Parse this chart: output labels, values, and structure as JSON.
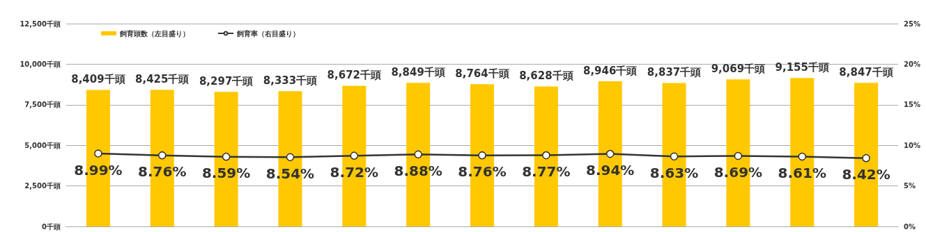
{
  "chart_data": {
    "type": "bar",
    "categories": [
      null,
      null,
      null,
      null,
      null,
      null,
      null,
      null,
      null,
      null,
      null,
      null,
      null
    ],
    "series": [
      {
        "name": "飼育頭数（左目盛り）",
        "color": "#ffc800",
        "values": [
          8409,
          8425,
          8297,
          8333,
          8672,
          8849,
          8764,
          8628,
          8946,
          8837,
          9069,
          9155,
          8847
        ],
        "value_labels": [
          "8,409千頭",
          "8,425千頭",
          "8,297千頭",
          "8,333千頭",
          "8,672千頭",
          "8,849千頭",
          "8,764千頭",
          "8,628千頭",
          "8,946千頭",
          "8,837千頭",
          "9,069千頭",
          "9,155千頭",
          "8,847千頭"
        ]
      },
      {
        "name": "飼育率（右目盛り）",
        "type": "line",
        "axis": "y2",
        "color": "#333333",
        "marker": "circle",
        "values": [
          8.99,
          8.76,
          8.59,
          8.54,
          8.72,
          8.88,
          8.76,
          8.77,
          8.94,
          8.63,
          8.69,
          8.61,
          8.42
        ],
        "value_labels": [
          "8.99%",
          "8.76%",
          "8.59%",
          "8.54%",
          "8.72%",
          "8.88%",
          "8.76%",
          "8.77%",
          "8.94%",
          "8.63%",
          "8.69%",
          "8.61%",
          "8.42%"
        ]
      }
    ],
    "ylim": [
      0,
      12500
    ],
    "yticks": [
      {
        "value": 0,
        "label": "0千頭"
      },
      {
        "value": 2500,
        "label": "2,500千頭"
      },
      {
        "value": 5000,
        "label": "5,000千頭"
      },
      {
        "value": 7500,
        "label": "7,500千頭"
      },
      {
        "value": 10000,
        "label": "10,000千頭"
      },
      {
        "value": 12500,
        "label": "12,500千頭"
      }
    ],
    "y2lim": [
      0,
      25
    ],
    "y2ticks": [
      {
        "value": 0,
        "label": "0%"
      },
      {
        "value": 5,
        "label": "5%"
      },
      {
        "value": 10,
        "label": "10%"
      },
      {
        "value": 15,
        "label": "15%"
      },
      {
        "value": 20,
        "label": "20%"
      },
      {
        "value": 25,
        "label": "25%"
      }
    ],
    "grid": "y",
    "legend": "top left"
  }
}
